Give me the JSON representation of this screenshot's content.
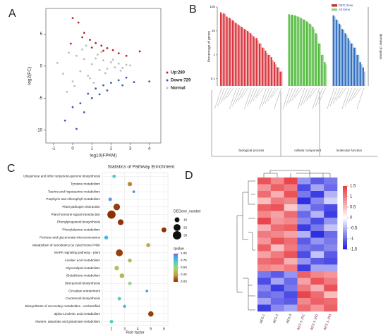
{
  "chart_data": [
    {
      "type": "scatter",
      "label": "A",
      "xlabel": "log10(FPKM)",
      "ylabel": "log2(FC)",
      "xlim": [
        -1.4,
        4.6
      ],
      "ylim": [
        -12,
        9
      ],
      "xticks": [
        -1,
        0,
        1,
        2,
        3,
        4
      ],
      "yticks": [
        5,
        0,
        -5,
        -10
      ],
      "series": [
        {
          "name": "Up:280",
          "color": "#c0202a",
          "x": [
            0,
            0.3,
            0.6,
            0.9,
            1.2,
            1.5,
            1.8,
            2.1,
            2.4,
            -0.1,
            0.5,
            1.0,
            1.6,
            2.8,
            3.5
          ],
          "y": [
            7.5,
            6.8,
            5.2,
            4.1,
            3.6,
            3.2,
            2.8,
            2.5,
            2.0,
            3.5,
            4.5,
            2.9,
            2.4,
            1.6,
            2.3
          ]
        },
        {
          "name": "Down:729",
          "color": "#3b5bb5",
          "x": [
            -0.4,
            0,
            0.4,
            0.8,
            1.2,
            1.6,
            2.0,
            2.4,
            2.8,
            3.2,
            0.2,
            1.0,
            1.8,
            2.6,
            4.0,
            0.6,
            1.4
          ],
          "y": [
            -8.5,
            -6.4,
            -5.8,
            -4.3,
            -3.5,
            -3.0,
            -2.6,
            -2.2,
            -1.8,
            -2.5,
            -9.8,
            -5,
            -3.8,
            -3,
            -2.4,
            -7.2,
            -4.4
          ]
        },
        {
          "name": "Normal",
          "color": "#bdbdbd",
          "x": [
            -0.8,
            -0.5,
            -0.2,
            0,
            0.2,
            0.4,
            0.6,
            0.8,
            1,
            1.2,
            1.4,
            1.6,
            1.8,
            2,
            2.2,
            2.4,
            2.6,
            2.8,
            3,
            0.1,
            0.5,
            0.9,
            1.3,
            1.7,
            2.1,
            2.5,
            -0.3,
            0.7,
            1.1,
            1.5
          ],
          "y": [
            0.5,
            -1.2,
            2.1,
            -2.4,
            1.6,
            -0.8,
            1.1,
            -1.5,
            0.3,
            1.2,
            -0.6,
            0.9,
            -0.4,
            0.6,
            -0.2,
            0.4,
            -0.3,
            0.2,
            0.1,
            -3.1,
            2.6,
            -1.9,
            1.8,
            -1.1,
            1.0,
            -0.7,
            -4,
            3.2,
            -2.6,
            2.2
          ]
        }
      ]
    },
    {
      "type": "bar",
      "label": "B",
      "ylabel": "Percentage of genes",
      "y2label": "Number of genes",
      "log_scale": true,
      "ylim": [
        0.05,
        100
      ],
      "yticks": [
        100,
        10,
        1,
        0.1
      ],
      "legend": [
        "DEG Gene",
        "All Gene"
      ],
      "groups": [
        {
          "name": "biological process",
          "color": "#d9363e",
          "values": [
            60,
            55,
            40,
            35,
            28,
            22,
            18,
            15,
            12,
            10,
            8,
            6,
            5,
            3,
            2,
            1.5,
            1,
            0.8,
            0.5,
            0.3,
            0.2
          ],
          "all_values": [
            50,
            50,
            35,
            30,
            25,
            20,
            16,
            13,
            11,
            9,
            7,
            5,
            4,
            3,
            2,
            1.2,
            1,
            0.6,
            0.4,
            0.3,
            0.2
          ]
        },
        {
          "name": "cellular component",
          "color": "#4fb83a",
          "values": [
            50,
            48,
            45,
            40,
            35,
            30,
            25,
            20,
            15,
            8,
            3,
            1,
            0.5
          ],
          "all_values": [
            45,
            45,
            42,
            38,
            33,
            28,
            22,
            18,
            12,
            7,
            3,
            1,
            0.4
          ]
        },
        {
          "name": "molecular function",
          "color": "#2f6fc0",
          "values": [
            45,
            30,
            20,
            12,
            8,
            5,
            3,
            2,
            1,
            0.5,
            0.3
          ],
          "all_values": [
            40,
            28,
            18,
            11,
            7,
            4,
            3,
            2,
            1,
            0.4,
            0.2
          ]
        }
      ]
    },
    {
      "type": "bubble",
      "label": "C",
      "title": "Statistics of Pathway Enrichment",
      "xlabel": "Rich factor",
      "xlim": [
        1.3,
        6.3
      ],
      "xticks": [
        2,
        3,
        4,
        5,
        6
      ],
      "categories": [
        "Ubiquinone and other terpenoid-quinone biosynthesis",
        "Tyrosine metabolism",
        "Taurine and hypotaurine metabolism",
        "Porphyrin and chlorophyll metabolism",
        "Plant-pathogen interaction",
        "Plant hormone signal transduction",
        "Phenylpropanoid biosynthesis",
        "Phenylalanine metabolism",
        "Pentose and glucuronate interconversions",
        "Metabolism of xenobiotics by cytochrome P450",
        "MAPK signaling pathway - plant",
        "Linoleic acid metabolism",
        "Glycerolipid metabolism",
        "Glutathione metabolism",
        "Diterpenoid biosynthesis",
        "Circadian entrainment",
        "Carotenoid biosynthesis",
        "Biosynthesis of secondary metabolites - unclassified",
        "alpha-Linolenic acid metabolism",
        "Alanine, aspartate and glutamate metabolism"
      ],
      "x": [
        2.2,
        3.4,
        3.7,
        1.9,
        2.4,
        2.0,
        2.7,
        6.0,
        1.6,
        4.8,
        2.6,
        3.4,
        2.4,
        2.8,
        3.4,
        4.7,
        2.6,
        3.0,
        5.0,
        2.0
      ],
      "sizes": [
        5,
        8,
        3,
        5,
        18,
        28,
        14,
        10,
        6,
        7,
        20,
        6,
        8,
        9,
        5,
        3,
        5,
        4,
        12,
        5
      ],
      "qvalues": [
        0.7,
        0.2,
        0.9,
        0.9,
        0.05,
        0.02,
        0.03,
        0.02,
        0.8,
        0.3,
        0.05,
        0.35,
        0.4,
        0.35,
        0.55,
        0.9,
        0.7,
        0.8,
        0.05,
        0.7
      ],
      "size_label": "DEGene_number",
      "size_ticks": [
        10,
        20,
        30
      ],
      "color_label": "qvalue",
      "clim": [
        0,
        1
      ],
      "colormap": [
        "#8b2500",
        "#c8a040",
        "#9fd67a",
        "#3ec9d6",
        "#7070e0"
      ],
      "color_ticks": [
        {
          "value": 1,
          "label": "1.00"
        },
        {
          "value": 0.75,
          "label": "0.75"
        },
        {
          "value": 0.5,
          "label": "0.50"
        },
        {
          "value": 0.25,
          "label": "0.25"
        },
        {
          "value": 0,
          "label": "0.00"
        }
      ],
      "grid": true
    },
    {
      "type": "heatmap",
      "label": "D",
      "columns": [
        "AES-1",
        "AES-2",
        "AES-3",
        "AES-1-JR1",
        "AES-1-JR2",
        "AES-1-JR3"
      ],
      "column_colors": [
        "#333333",
        "#333333",
        "#333333",
        "#8b2252",
        "#8b2252",
        "#8b2252"
      ],
      "zlim": [
        -1.5,
        1.5
      ],
      "colormap": [
        "#1f1fe0",
        "#ffffff",
        "#e8383f"
      ],
      "zticks": [
        1.5,
        1,
        0.5,
        0,
        -0.5,
        -1,
        -1.5
      ],
      "values": [
        [
          1.3,
          0.9,
          1.4,
          -0.7,
          -1.1,
          -0.9
        ],
        [
          0.8,
          1.2,
          1.0,
          -1.2,
          -0.6,
          -1.0
        ],
        [
          1.1,
          0.6,
          1.3,
          -0.9,
          -1.3,
          -0.5
        ],
        [
          0.5,
          1.0,
          0.9,
          -1.4,
          -0.8,
          -0.3
        ],
        [
          1.2,
          1.3,
          0.4,
          -0.6,
          -1.0,
          -1.2
        ],
        [
          0.9,
          0.7,
          1.1,
          -1.0,
          -0.5,
          -1.3
        ],
        [
          1.4,
          0.8,
          0.9,
          -0.8,
          -1.2,
          -0.7
        ],
        [
          0.6,
          1.1,
          1.2,
          -1.3,
          -0.9,
          -0.4
        ],
        [
          1.0,
          0.9,
          0.7,
          -0.5,
          -1.4,
          -1.0
        ],
        [
          0.8,
          1.3,
          1.1,
          -1.1,
          -0.7,
          -0.9
        ],
        [
          1.2,
          0.5,
          1.0,
          -0.9,
          -1.0,
          -0.8
        ],
        [
          0.7,
          1.0,
          1.3,
          -1.2,
          -0.4,
          -1.1
        ],
        [
          1.1,
          1.2,
          0.6,
          -0.7,
          -1.1,
          -1.2
        ],
        [
          0.9,
          0.8,
          1.0,
          -1.3,
          -0.6,
          -0.6
        ],
        [
          -0.9,
          -1.1,
          -0.7,
          1.2,
          0.9,
          0.8
        ],
        [
          -1.2,
          -0.6,
          -1.0,
          0.7,
          1.3,
          1.0
        ],
        [
          -0.8,
          -1.3,
          -0.9,
          1.0,
          0.6,
          1.3
        ],
        [
          -1.0,
          -0.9,
          -1.2,
          1.4,
          1.1,
          0.5
        ],
        [
          -0.6,
          -1.0,
          -1.1,
          0.9,
          1.2,
          1.1
        ],
        [
          -1.3,
          -0.8,
          -0.6,
          1.1,
          0.8,
          1.2
        ]
      ]
    }
  ]
}
